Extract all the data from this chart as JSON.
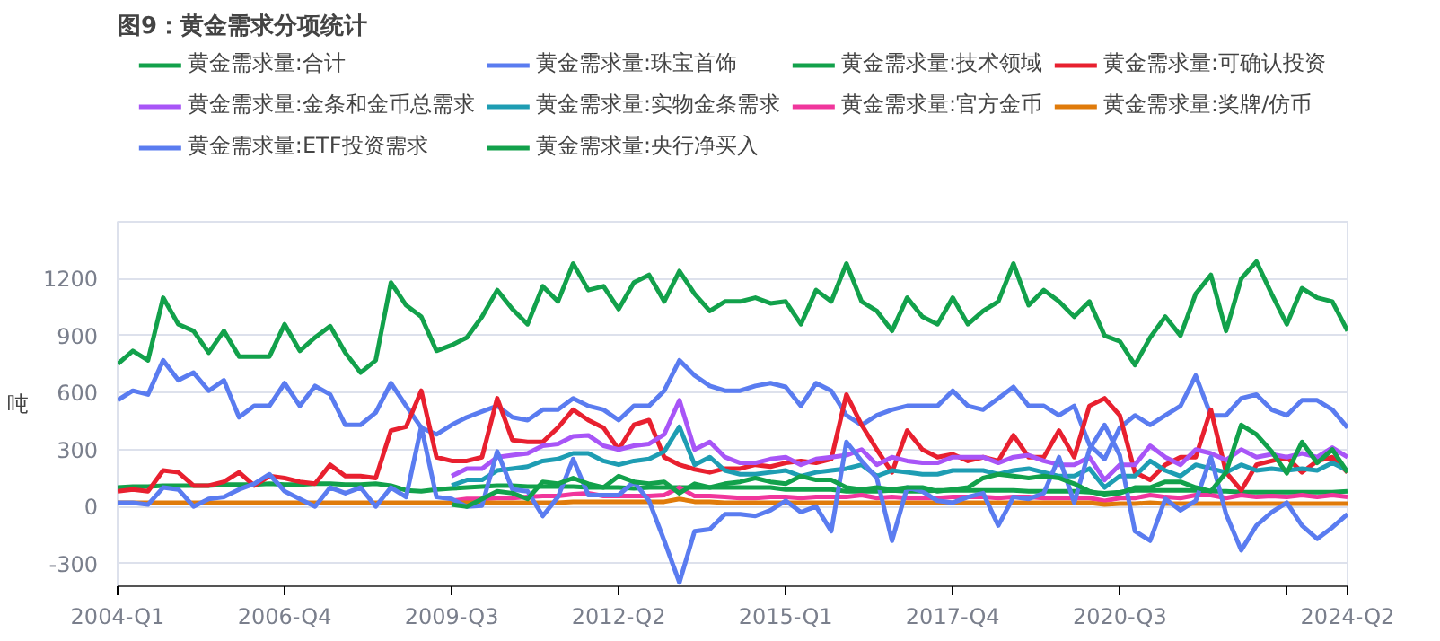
{
  "chart_data": {
    "type": "line",
    "title": "图9：黄金需求分项统计",
    "ylabel": "吨",
    "categories": [
      "2004-Q1",
      null,
      null,
      null,
      null,
      null,
      null,
      null,
      null,
      null,
      null,
      "2006-Q4",
      null,
      null,
      null,
      null,
      null,
      null,
      null,
      null,
      null,
      null,
      "2009-Q3",
      null,
      null,
      null,
      null,
      null,
      null,
      null,
      null,
      null,
      null,
      "2012-Q2",
      null,
      null,
      null,
      null,
      null,
      null,
      null,
      null,
      null,
      null,
      "2015-Q1",
      null,
      null,
      null,
      null,
      null,
      null,
      null,
      null,
      null,
      null,
      "2017-Q4",
      null,
      null,
      null,
      null,
      null,
      null,
      null,
      null,
      null,
      null,
      "2020-Q3",
      null,
      null,
      null,
      null,
      null,
      null,
      null,
      null,
      null,
      null,
      null,
      null,
      null,
      null,
      "2024-Q2"
    ],
    "ylim": [
      -420,
      1500
    ],
    "yticks": [
      -300,
      0,
      300,
      600,
      900,
      1200,
      {
        "value": 1500,
        "label": null
      }
    ],
    "grid": "y",
    "legend": "top",
    "marker": "none",
    "line_style": "solid",
    "series": [
      {
        "name": "黄金需求量:合计",
        "color": "#12a14b",
        "values": [
          750,
          820,
          770,
          1100,
          960,
          925,
          810,
          925,
          790,
          790,
          790,
          960,
          820,
          890,
          950,
          810,
          705,
          770,
          1180,
          1060,
          1000,
          820,
          850,
          890,
          1000,
          1140,
          1040,
          960,
          1160,
          1080,
          1280,
          1140,
          1160,
          1040,
          1180,
          1220,
          1080,
          1240,
          1120,
          1030,
          1080,
          1080,
          1100,
          1070,
          1080,
          960,
          1140,
          1080,
          1280,
          1080,
          1030,
          925,
          1100,
          1000,
          960,
          1100,
          960,
          1030,
          1080,
          1280,
          1060,
          1140,
          1080,
          1000,
          1080,
          900,
          870,
          745,
          890,
          1000,
          900,
          1120,
          1220,
          925,
          1200,
          1290,
          1120,
          960,
          1150,
          1100,
          1080,
          925
        ]
      },
      {
        "name": "黄金需求量:珠宝首饰",
        "color": "#5a7cf0",
        "values": [
          560,
          610,
          590,
          770,
          665,
          705,
          610,
          665,
          470,
          530,
          530,
          650,
          530,
          635,
          590,
          430,
          430,
          495,
          650,
          530,
          415,
          380,
          430,
          470,
          500,
          530,
          470,
          455,
          510,
          510,
          570,
          530,
          510,
          455,
          530,
          530,
          610,
          770,
          690,
          635,
          610,
          610,
          635,
          650,
          630,
          530,
          650,
          610,
          480,
          430,
          480,
          510,
          530,
          530,
          530,
          610,
          530,
          510,
          570,
          630,
          530,
          530,
          480,
          530,
          325,
          250,
          415,
          480,
          430,
          480,
          530,
          690,
          480,
          480,
          570,
          590,
          510,
          480,
          560,
          560,
          510,
          415
        ]
      },
      {
        "name": "黄金需求量:技术领域",
        "color": "#12a14b",
        "values": [
          100,
          105,
          105,
          110,
          110,
          110,
          110,
          115,
          115,
          115,
          120,
          115,
          115,
          120,
          120,
          115,
          115,
          120,
          110,
          85,
          80,
          90,
          95,
          100,
          105,
          110,
          110,
          105,
          105,
          105,
          105,
          100,
          100,
          100,
          95,
          100,
          100,
          100,
          100,
          100,
          100,
          100,
          100,
          100,
          90,
          90,
          90,
          90,
          80,
          80,
          80,
          85,
          80,
          80,
          85,
          85,
          85,
          85,
          85,
          85,
          80,
          80,
          80,
          80,
          75,
          70,
          75,
          85,
          85,
          85,
          85,
          85,
          80,
          80,
          75,
          75,
          75,
          75,
          75,
          75,
          75,
          80
        ]
      },
      {
        "name": "黄金需求量:可确认投资",
        "color": "#e8202f",
        "values": [
          80,
          90,
          80,
          190,
          180,
          110,
          110,
          130,
          180,
          110,
          160,
          150,
          130,
          120,
          220,
          160,
          160,
          150,
          400,
          420,
          610,
          260,
          240,
          240,
          260,
          570,
          350,
          340,
          340,
          415,
          510,
          455,
          415,
          300,
          430,
          455,
          260,
          220,
          196,
          180,
          200,
          200,
          220,
          210,
          230,
          240,
          230,
          250,
          590,
          430,
          300,
          180,
          400,
          300,
          260,
          275,
          240,
          260,
          240,
          375,
          260,
          260,
          400,
          260,
          530,
          570,
          480,
          180,
          140,
          220,
          260,
          260,
          510,
          180,
          85,
          220,
          240,
          260,
          180,
          240,
          260,
          180
        ]
      },
      {
        "name": "黄金需求量:金条和金币总需求",
        "color": "#a855f7",
        "values": [
          null,
          null,
          null,
          null,
          null,
          null,
          null,
          null,
          null,
          null,
          null,
          null,
          null,
          null,
          null,
          null,
          null,
          null,
          null,
          null,
          null,
          null,
          160,
          200,
          200,
          260,
          270,
          280,
          320,
          330,
          370,
          375,
          320,
          300,
          320,
          330,
          380,
          560,
          300,
          340,
          260,
          230,
          230,
          250,
          260,
          220,
          250,
          260,
          270,
          300,
          220,
          260,
          240,
          230,
          230,
          260,
          260,
          260,
          230,
          260,
          270,
          240,
          220,
          220,
          260,
          140,
          220,
          220,
          320,
          260,
          220,
          300,
          280,
          245,
          300,
          260,
          275,
          260,
          280,
          260,
          310,
          260
        ]
      },
      {
        "name": "黄金需求量:实物金条需求",
        "color": "#1e9db3",
        "values": [
          null,
          null,
          null,
          null,
          null,
          null,
          null,
          null,
          null,
          null,
          null,
          null,
          null,
          null,
          null,
          null,
          null,
          null,
          null,
          null,
          null,
          null,
          110,
          140,
          140,
          190,
          200,
          210,
          240,
          250,
          280,
          280,
          240,
          220,
          240,
          250,
          290,
          420,
          220,
          260,
          190,
          170,
          170,
          180,
          190,
          160,
          180,
          190,
          200,
          220,
          160,
          190,
          180,
          170,
          170,
          190,
          190,
          190,
          170,
          190,
          200,
          180,
          160,
          160,
          200,
          100,
          160,
          160,
          240,
          190,
          160,
          220,
          200,
          180,
          220,
          190,
          200,
          190,
          200,
          190,
          230,
          190
        ]
      },
      {
        "name": "黄金需求量:官方金币",
        "color": "#f0369c",
        "values": [
          null,
          null,
          null,
          null,
          null,
          null,
          null,
          null,
          null,
          null,
          null,
          null,
          null,
          null,
          null,
          null,
          null,
          null,
          null,
          null,
          null,
          null,
          30,
          40,
          40,
          45,
          45,
          50,
          55,
          55,
          65,
          70,
          55,
          55,
          55,
          55,
          60,
          100,
          55,
          55,
          50,
          45,
          45,
          50,
          50,
          45,
          50,
          50,
          50,
          60,
          45,
          50,
          45,
          45,
          45,
          50,
          50,
          50,
          45,
          50,
          50,
          45,
          45,
          45,
          45,
          30,
          45,
          45,
          60,
          50,
          45,
          60,
          60,
          45,
          60,
          50,
          55,
          50,
          60,
          50,
          60,
          50
        ]
      },
      {
        "name": "黄金需求量:奖牌/仿币",
        "color": "#e07b0a",
        "values": [
          20,
          20,
          20,
          20,
          20,
          20,
          20,
          20,
          20,
          20,
          20,
          20,
          20,
          20,
          20,
          20,
          20,
          20,
          20,
          20,
          20,
          20,
          20,
          20,
          20,
          20,
          20,
          20,
          20,
          20,
          25,
          25,
          25,
          25,
          25,
          25,
          25,
          40,
          25,
          25,
          20,
          20,
          20,
          20,
          20,
          20,
          20,
          20,
          20,
          20,
          20,
          20,
          20,
          20,
          20,
          20,
          20,
          20,
          20,
          20,
          20,
          20,
          20,
          20,
          20,
          10,
          15,
          15,
          20,
          15,
          15,
          15,
          15,
          15,
          15,
          15,
          15,
          15,
          15,
          15,
          15,
          15
        ]
      },
      {
        "name": "黄金需求量:ETF投资需求",
        "color": "#5a7cf0",
        "values": [
          20,
          20,
          10,
          100,
          90,
          0,
          40,
          50,
          90,
          120,
          170,
          80,
          40,
          0,
          100,
          70,
          100,
          0,
          100,
          50,
          420,
          50,
          40,
          0,
          5,
          290,
          90,
          80,
          -50,
          50,
          250,
          60,
          60,
          60,
          130,
          30,
          -180,
          -400,
          -130,
          -120,
          -40,
          -40,
          -50,
          -20,
          30,
          -30,
          0,
          -130,
          340,
          240,
          150,
          -180,
          100,
          80,
          30,
          20,
          50,
          70,
          -100,
          50,
          40,
          70,
          260,
          20,
          300,
          430,
          270,
          -130,
          -180,
          40,
          -20,
          30,
          260,
          -40,
          -230,
          -100,
          -30,
          20,
          -100,
          -170,
          -110,
          -40
        ]
      },
      {
        "name": "黄金需求量:央行净买入",
        "color": "#12a14b",
        "values": [
          null,
          null,
          null,
          null,
          null,
          null,
          null,
          null,
          null,
          null,
          null,
          null,
          null,
          null,
          null,
          null,
          null,
          null,
          null,
          null,
          null,
          null,
          10,
          0,
          40,
          80,
          70,
          40,
          130,
          120,
          150,
          120,
          100,
          160,
          130,
          120,
          130,
          70,
          120,
          100,
          120,
          130,
          150,
          130,
          120,
          160,
          140,
          140,
          100,
          90,
          100,
          90,
          100,
          100,
          80,
          90,
          100,
          150,
          170,
          160,
          150,
          160,
          150,
          120,
          80,
          60,
          70,
          100,
          100,
          130,
          130,
          100,
          80,
          180,
          430,
          380,
          290,
          175,
          340,
          230,
          300,
          180
        ]
      }
    ]
  }
}
